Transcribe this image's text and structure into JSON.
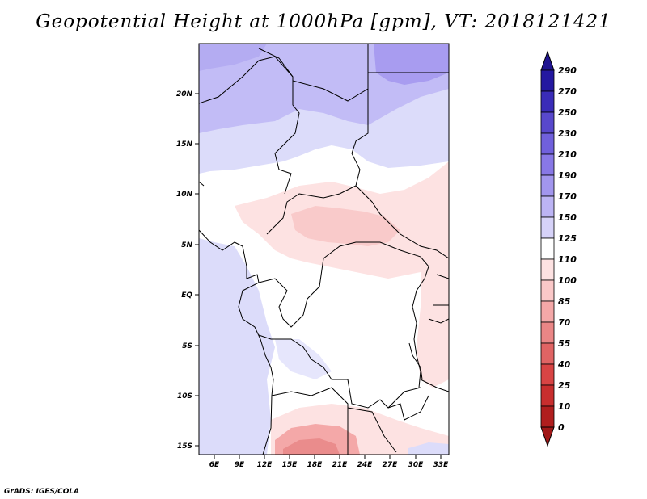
{
  "title": "Geopotential Height at 1000hPa [gpm], VT: 2018121421",
  "credit": "GrADS: IGES/COLA",
  "lat_labels": [
    "20N",
    "15N",
    "10N",
    "5N",
    "EQ",
    "5S",
    "10S",
    "15S"
  ],
  "lon_labels": [
    "6E",
    "9E",
    "12E",
    "15E",
    "18E",
    "21E",
    "24E",
    "27E",
    "30E",
    "33E"
  ],
  "colorbar": {
    "labels": [
      "290",
      "270",
      "250",
      "230",
      "210",
      "190",
      "170",
      "150",
      "125",
      "110",
      "100",
      "85",
      "70",
      "55",
      "40",
      "25",
      "10",
      "0"
    ],
    "colors": [
      "#2418a0",
      "#3a2cb8",
      "#5848cc",
      "#7060dc",
      "#8878e6",
      "#a296ee",
      "#bcb4f4",
      "#d6d2f8",
      "#ffffff",
      "#fde2e2",
      "#fac8c8",
      "#f4a8a8",
      "#ea8686",
      "#e06464",
      "#d84444",
      "#c82e2e",
      "#b01e1e"
    ],
    "top_arrow_color": "#201490",
    "bottom_arrow_color": "#a01818"
  }
}
